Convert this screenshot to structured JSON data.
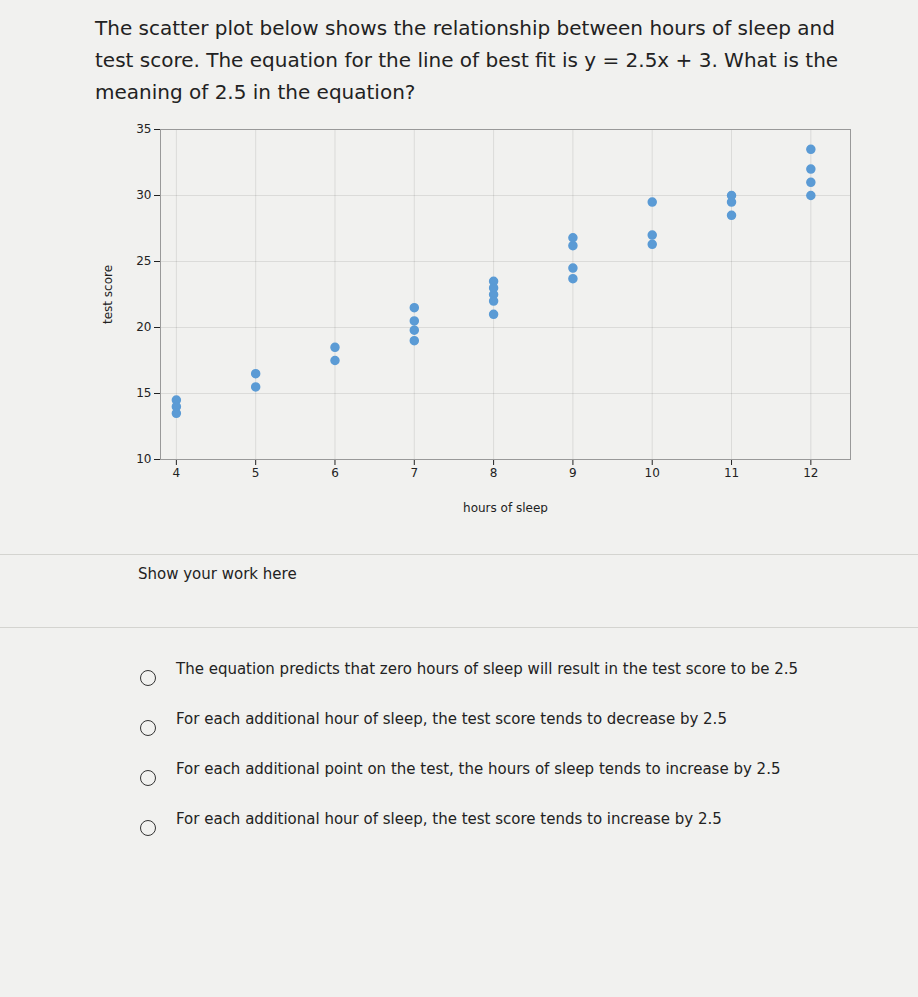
{
  "question": "The scatter plot below shows the relationship between hours of sleep and test score. The equation for the line of best fit is y = 2.5x + 3. What is the meaning of 2.5 in the equation?",
  "chart_data": {
    "type": "scatter",
    "x_label": "hours of sleep",
    "y_label": "test score",
    "x": [
      4,
      4,
      4,
      5,
      5,
      6,
      6,
      7,
      7,
      7,
      7,
      8,
      8,
      8,
      8,
      8,
      9,
      9,
      9,
      9,
      10,
      10,
      10,
      11,
      11,
      11,
      12,
      12,
      12,
      12
    ],
    "y": [
      14.5,
      14,
      13.5,
      16.5,
      15.5,
      18.5,
      17.5,
      21.5,
      20.5,
      19.8,
      19,
      23.5,
      23,
      22.5,
      22,
      21,
      26.8,
      26.2,
      24.5,
      23.7,
      29.5,
      27,
      26.3,
      30,
      29.5,
      28.5,
      33.5,
      32,
      31,
      30
    ],
    "color": "#5b9bd5",
    "marker": "circle",
    "xlim": [
      3.8,
      12.5
    ],
    "xticks": [
      4,
      5,
      6,
      7,
      8,
      9,
      10,
      11,
      12
    ],
    "ylim": [
      10,
      35
    ],
    "yticks": [
      10,
      15,
      20,
      25,
      30,
      35
    ],
    "grid": true
  },
  "work_prompt": "Show your work here",
  "options": [
    "The equation predicts that zero hours of sleep will result in the test score to be 2.5",
    "For each additional hour of sleep, the test score tends to decrease by 2.5",
    "For each additional point on the test, the hours of sleep tends to increase by 2.5",
    "For each additional hour of sleep, the test score tends to increase by 2.5"
  ]
}
